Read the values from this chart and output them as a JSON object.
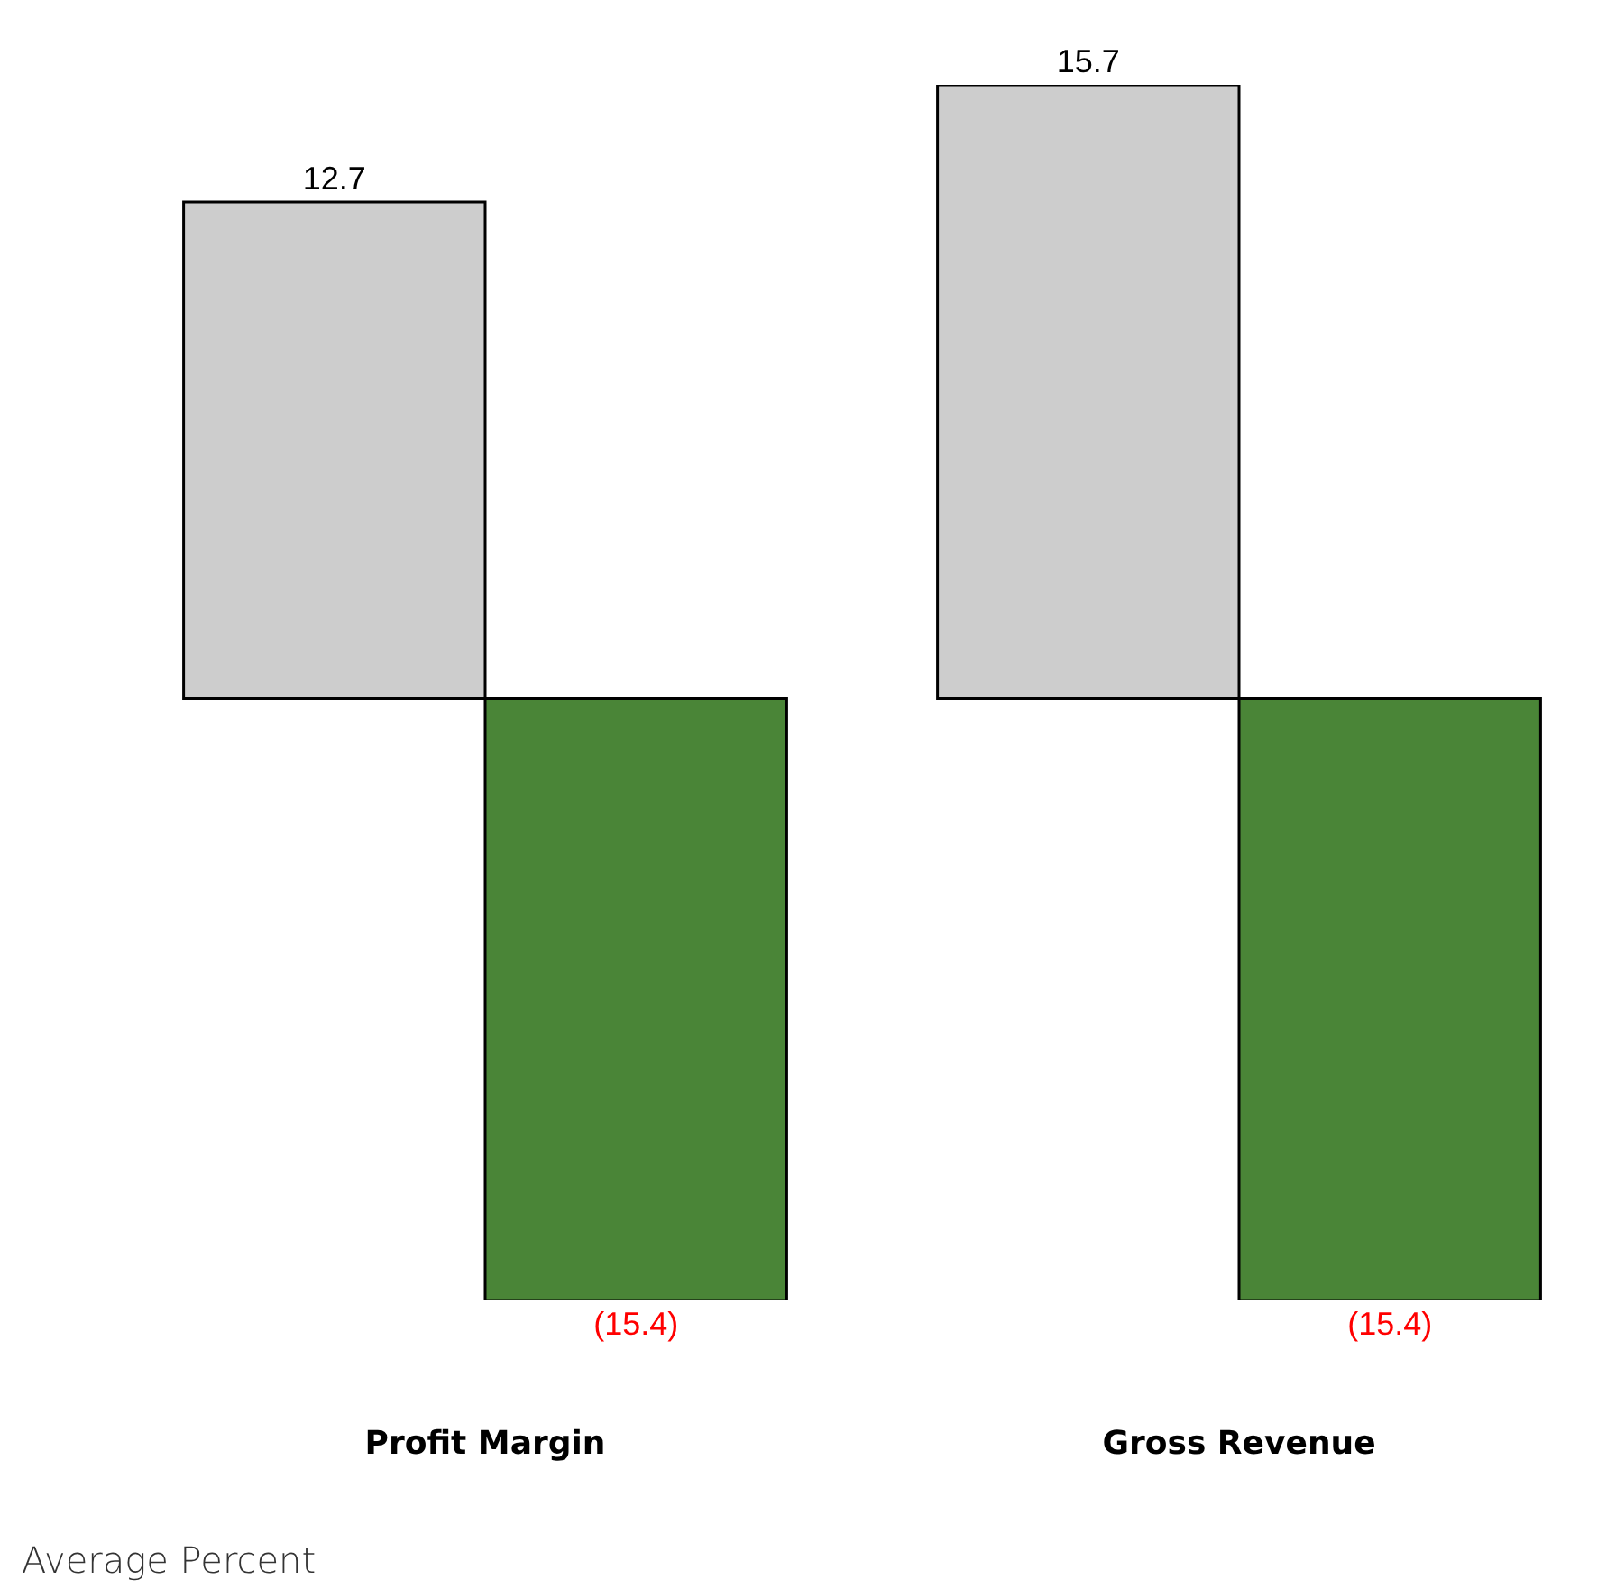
{
  "chart_data": {
    "type": "bar",
    "categories": [
      "Profit Margin",
      "Gross Revenue"
    ],
    "series": [
      {
        "color": "#cdcdcd",
        "values": [
          12.7,
          15.7
        ],
        "value_labels": [
          "12.7",
          "15.7"
        ]
      },
      {
        "color": "#4a8537",
        "values": [
          -15.4,
          -15.4
        ],
        "value_labels": [
          "(15.4)",
          "(15.4)"
        ]
      }
    ],
    "annotations": [
      "Average Percent"
    ]
  }
}
